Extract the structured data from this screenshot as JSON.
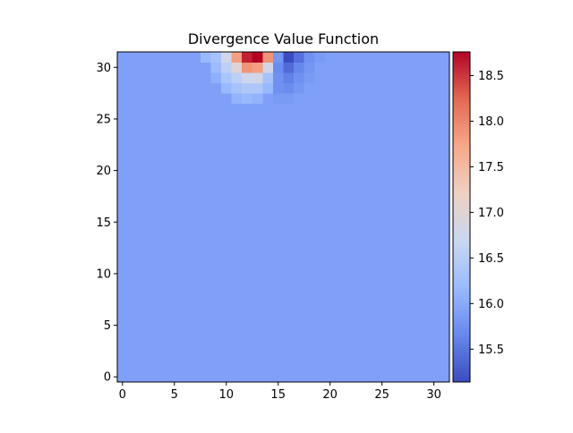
{
  "chart_data": {
    "type": "heatmap",
    "title": "Divergence Value Function",
    "xlabel": "",
    "ylabel": "",
    "grid_size": [
      32,
      32
    ],
    "x_range": [
      -0.5,
      31.5
    ],
    "y_range": [
      -0.5,
      31.5
    ],
    "origin": "lower",
    "xticks": [
      0,
      5,
      10,
      15,
      20,
      25,
      30
    ],
    "yticks": [
      0,
      5,
      10,
      15,
      20,
      25,
      30
    ],
    "grid": false,
    "colormap": "coolwarm",
    "colormap_stops": [
      "#3b4cc0",
      "#6788ee",
      "#9abbff",
      "#c9d7f0",
      "#edd1c2",
      "#f7a889",
      "#e26952",
      "#b40426"
    ],
    "colorbar": {
      "position": "right",
      "range": [
        15.14,
        18.76
      ],
      "ticks": [
        15.5,
        16.0,
        16.5,
        17.0,
        17.5,
        18.0,
        18.5
      ]
    },
    "background_value": 15.9,
    "values_sparse": [
      {
        "x": 8,
        "y": 31,
        "v": 16.15
      },
      {
        "x": 9,
        "y": 31,
        "v": 16.3
      },
      {
        "x": 10,
        "y": 31,
        "v": 16.8
      },
      {
        "x": 11,
        "y": 31,
        "v": 17.8
      },
      {
        "x": 12,
        "y": 31,
        "v": 18.6
      },
      {
        "x": 13,
        "y": 31,
        "v": 18.76
      },
      {
        "x": 14,
        "y": 31,
        "v": 17.9
      },
      {
        "x": 15,
        "y": 31,
        "v": 15.8
      },
      {
        "x": 16,
        "y": 31,
        "v": 15.14
      },
      {
        "x": 17,
        "y": 31,
        "v": 15.45
      },
      {
        "x": 18,
        "y": 31,
        "v": 15.75
      },
      {
        "x": 19,
        "y": 31,
        "v": 15.85
      },
      {
        "x": 9,
        "y": 30,
        "v": 16.2
      },
      {
        "x": 10,
        "y": 30,
        "v": 16.55
      },
      {
        "x": 11,
        "y": 30,
        "v": 17.0
      },
      {
        "x": 12,
        "y": 30,
        "v": 17.9
      },
      {
        "x": 13,
        "y": 30,
        "v": 17.8
      },
      {
        "x": 14,
        "y": 30,
        "v": 16.8
      },
      {
        "x": 15,
        "y": 30,
        "v": 15.7
      },
      {
        "x": 16,
        "y": 30,
        "v": 15.4
      },
      {
        "x": 17,
        "y": 30,
        "v": 15.65
      },
      {
        "x": 18,
        "y": 30,
        "v": 15.8
      },
      {
        "x": 9,
        "y": 29,
        "v": 16.05
      },
      {
        "x": 10,
        "y": 29,
        "v": 16.35
      },
      {
        "x": 11,
        "y": 29,
        "v": 16.55
      },
      {
        "x": 12,
        "y": 29,
        "v": 16.75
      },
      {
        "x": 13,
        "y": 29,
        "v": 16.8
      },
      {
        "x": 14,
        "y": 29,
        "v": 16.3
      },
      {
        "x": 15,
        "y": 29,
        "v": 15.75
      },
      {
        "x": 16,
        "y": 29,
        "v": 15.6
      },
      {
        "x": 17,
        "y": 29,
        "v": 15.75
      },
      {
        "x": 18,
        "y": 29,
        "v": 15.85
      },
      {
        "x": 10,
        "y": 28,
        "v": 16.15
      },
      {
        "x": 11,
        "y": 28,
        "v": 16.3
      },
      {
        "x": 12,
        "y": 28,
        "v": 16.4
      },
      {
        "x": 13,
        "y": 28,
        "v": 16.4
      },
      {
        "x": 14,
        "y": 28,
        "v": 16.15
      },
      {
        "x": 15,
        "y": 28,
        "v": 15.75
      },
      {
        "x": 16,
        "y": 28,
        "v": 15.7
      },
      {
        "x": 17,
        "y": 28,
        "v": 15.8
      },
      {
        "x": 11,
        "y": 27,
        "v": 16.1
      },
      {
        "x": 12,
        "y": 27,
        "v": 16.15
      },
      {
        "x": 13,
        "y": 27,
        "v": 16.1
      },
      {
        "x": 15,
        "y": 27,
        "v": 15.85
      },
      {
        "x": 16,
        "y": 27,
        "v": 15.85
      }
    ]
  }
}
